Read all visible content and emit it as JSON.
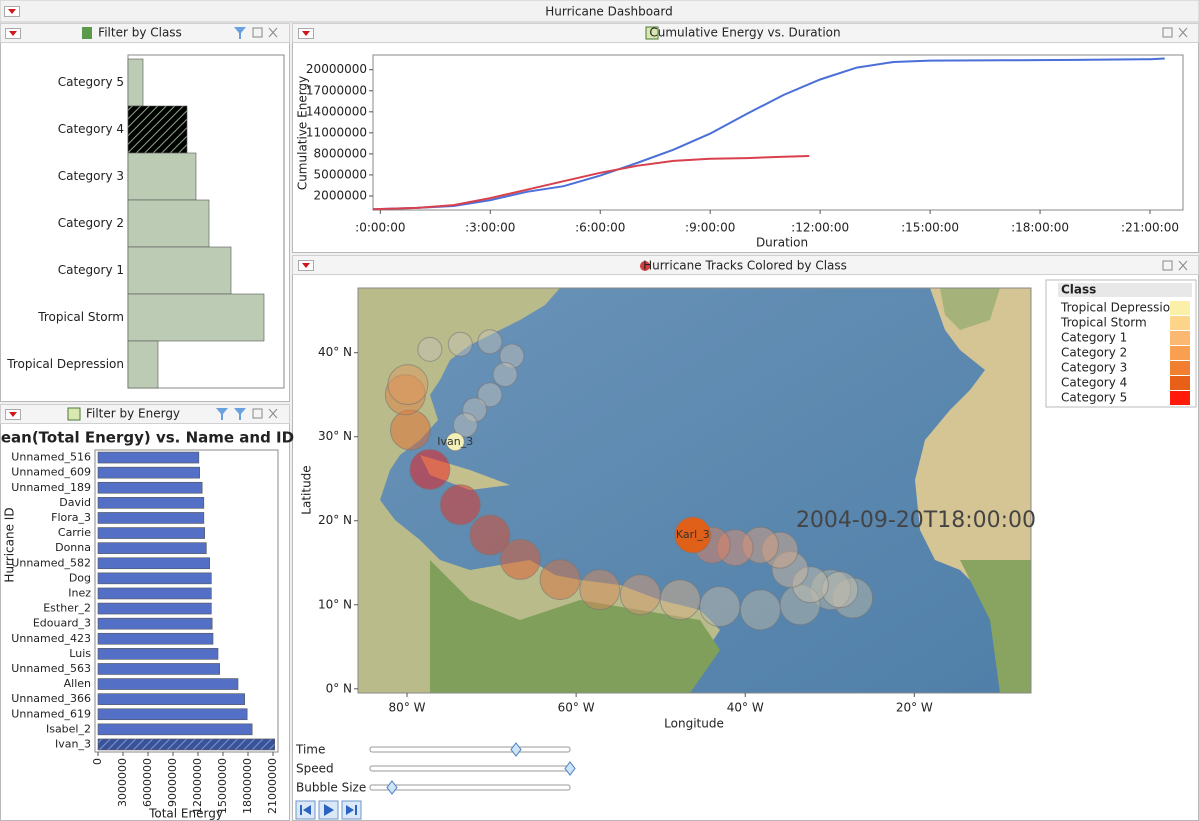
{
  "window_title": "Hurricane Dashboard",
  "chart_data": [
    {
      "type": "bar",
      "orientation": "horizontal",
      "panel_title": "Filter by Class",
      "categories": [
        "Category 5",
        "Category 4",
        "Category 3",
        "Category 2",
        "Category 1",
        "Tropical Storm",
        "Tropical Depression"
      ],
      "values": [
        15,
        59,
        68,
        81,
        103,
        136,
        30
      ],
      "color": "#bccbb4",
      "selected_index": 1,
      "selected_color": "#5e7f5a"
    },
    {
      "type": "bar",
      "orientation": "horizontal",
      "panel_title": "Filter by Energy",
      "title": "Mean(Total Energy) vs. Name and ID",
      "x_label": "Total Energy",
      "y_label": "Hurricane ID",
      "categories": [
        "Unnamed_516",
        "Unnamed_609",
        "Unnamed_189",
        "David",
        "Flora_3",
        "Carrie",
        "Donna",
        "Unnamed_582",
        "Dog",
        "Inez",
        "Esther_2",
        "Edouard_3",
        "Unnamed_423",
        "Luis",
        "Unnamed_563",
        "Allen",
        "Unnamed_366",
        "Unnamed_619",
        "Isabel_2",
        "Ivan_3"
      ],
      "values": [
        12100000,
        12200000,
        12500000,
        12700000,
        12700000,
        12800000,
        13000000,
        13400000,
        13600000,
        13600000,
        13600000,
        13700000,
        13800000,
        14400000,
        14600000,
        16800000,
        17600000,
        17900000,
        18500000,
        21200000
      ],
      "color": "#5470c6",
      "selected_index": 19,
      "selected_color": "#3a5298",
      "xlim": [
        0,
        21300000
      ],
      "xticks": [
        0,
        3000000,
        6000000,
        9000000,
        12000000,
        15000000,
        18000000,
        21000000
      ]
    },
    {
      "type": "line",
      "panel_title": "Cumulative Energy vs. Duration",
      "x_label": "Duration",
      "y_label": "Cumulative Energy",
      "xlim": [
        -0.2,
        21.9
      ],
      "xticks": [
        {
          "value": 0,
          "label": ":0:00:00"
        },
        {
          "value": 3,
          "label": ":3:00:00"
        },
        {
          "value": 6,
          "label": ":6:00:00"
        },
        {
          "value": 9,
          "label": ":9:00:00"
        },
        {
          "value": 12,
          "label": ":12:00:00"
        },
        {
          "value": 15,
          "label": ":15:00:00"
        },
        {
          "value": 18,
          "label": ":18:00:00"
        },
        {
          "value": 21,
          "label": ":21:00:00"
        }
      ],
      "ylim": [
        0,
        22100000
      ],
      "yticks": [
        2000000,
        5000000,
        8000000,
        11000000,
        14000000,
        17000000,
        20000000
      ],
      "series": [
        {
          "color": "#4a6fd8",
          "x": [
            -0.2,
            1,
            2,
            3,
            4,
            5,
            6,
            7,
            8,
            9,
            10,
            11,
            12,
            13,
            14,
            15,
            17,
            19,
            21,
            21.4
          ],
          "values": [
            100000,
            300000,
            570000,
            1400000,
            2600000,
            3400000,
            4900000,
            6700000,
            8600000,
            10900000,
            13700000,
            16400000,
            18600000,
            20300000,
            21100000,
            21300000,
            21350000,
            21400000,
            21500000,
            21600000
          ]
        },
        {
          "color": "#d9404e",
          "x": [
            -0.2,
            1,
            2,
            3,
            4,
            5,
            6,
            7,
            8,
            9,
            10,
            11,
            11.7
          ],
          "values": [
            100000,
            300000,
            700000,
            1700000,
            2900000,
            4100000,
            5300000,
            6300000,
            7000000,
            7300000,
            7400000,
            7600000,
            7700000
          ]
        }
      ]
    },
    {
      "type": "scatter",
      "panel_title": "Hurricane Tracks Colored by Class",
      "x_label": "Longitude",
      "y_label": "Latitude",
      "xlim": [
        -85.8,
        -6.2
      ],
      "xticks": [
        {
          "value": -80,
          "label": "80° W"
        },
        {
          "value": -60,
          "label": "60° W"
        },
        {
          "value": -40,
          "label": "40° W"
        },
        {
          "value": -20,
          "label": "20° W"
        }
      ],
      "ylim": [
        -0.5,
        47.7
      ],
      "yticks": [
        {
          "value": 0,
          "label": "0° N"
        },
        {
          "value": 10,
          "label": "10° N"
        },
        {
          "value": 20,
          "label": "20° N"
        },
        {
          "value": 30,
          "label": "30° N"
        },
        {
          "value": 40,
          "label": "40° N"
        }
      ],
      "annotation": "2004-09-20T18:00:00",
      "legend": {
        "title": "Class",
        "entries": [
          {
            "name": "Tropical Depression",
            "color": "#fbf0a8"
          },
          {
            "name": "Tropical Storm",
            "color": "#fcd48a"
          },
          {
            "name": "Category 1",
            "color": "#fbb870"
          },
          {
            "name": "Category 2",
            "color": "#f8a050"
          },
          {
            "name": "Category 3",
            "color": "#f08030"
          },
          {
            "name": "Category 4",
            "color": "#e86018"
          },
          {
            "name": "Category 5",
            "color": "#ff1a0a"
          }
        ]
      },
      "series": [
        {
          "size": 20,
          "opacity": 0.5,
          "x": [
            -27.3,
            -29.9,
            -33.5,
            -38.2,
            -43.0,
            -47.7,
            -52.4,
            -57.2,
            -61.9,
            -66.6,
            -70.2,
            -73.7,
            -77.3,
            -79.6,
            -80.2,
            -79.9
          ],
          "values": [
            10.8,
            11.8,
            10.0,
            9.4,
            9.8,
            10.6,
            11.2,
            11.8,
            13.0,
            15.4,
            18.3,
            21.9,
            26.1,
            30.8,
            35.0,
            36.2
          ],
          "colors": [
            "#b8b8a8",
            "#b8b8a8",
            "#b8b8a8",
            "#b8b8a8",
            "#c0b8a8",
            "#d8b088",
            "#d89a70",
            "#d88858",
            "#d87040",
            "#e05a30",
            "#e04828",
            "#e83020",
            "#f01818",
            "#e06a30",
            "#e08040",
            "#e09860"
          ]
        },
        {
          "size": 12,
          "opacity": 0.45,
          "x": [
            -77.3,
            -73.7,
            -70.2,
            -67.6,
            -68.4,
            -70.2,
            -72.0,
            -73.1
          ],
          "values": [
            40.4,
            41.0,
            41.3,
            39.6,
            37.4,
            35.0,
            33.2,
            31.4
          ],
          "colors": [
            "#c8c4b8",
            "#c8c4b8",
            "#c8c4b8",
            "#c8c4b8",
            "#c8c4b8",
            "#c8c4b8",
            "#c8c4b8",
            "#c8c4b8"
          ]
        },
        {
          "size": 18,
          "opacity": 0.5,
          "x": [
            -28.8,
            -32.3,
            -34.7,
            -35.9,
            -38.2,
            -41.2,
            -43.9
          ],
          "values": [
            11.8,
            12.4,
            14.2,
            16.5,
            17.1,
            16.8,
            17.1
          ],
          "colors": [
            "#c8c0b0",
            "#c8c0b0",
            "#d0b8a0",
            "#d8a888",
            "#d8a080",
            "#e09070",
            "#e08060"
          ]
        },
        {
          "name": "Ivan_3",
          "size": 9,
          "opacity": 1,
          "x": [
            -74.3
          ],
          "values": [
            29.4
          ],
          "colors": [
            "#f2f0b8"
          ]
        },
        {
          "name": "Karl_3",
          "size": 18,
          "opacity": 1,
          "x": [
            -46.2
          ],
          "values": [
            18.3
          ],
          "colors": [
            "#e0601a"
          ]
        }
      ]
    }
  ],
  "controls": [
    {
      "label": "Time"
    },
    {
      "label": "Speed"
    },
    {
      "label": "Bubble Size"
    }
  ]
}
